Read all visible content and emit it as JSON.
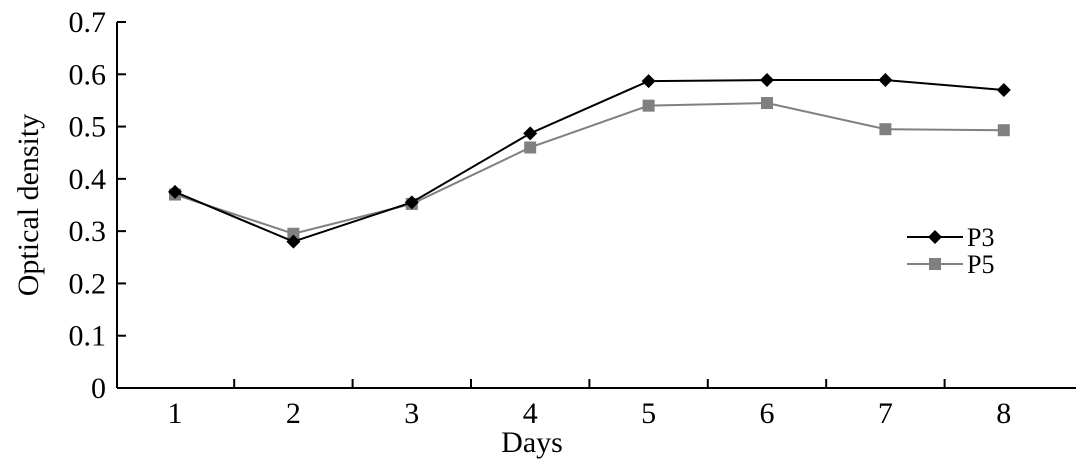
{
  "chart_data": {
    "type": "line",
    "xlabel": "Days",
    "ylabel": "Optical density",
    "categories": [
      "1",
      "2",
      "3",
      "4",
      "5",
      "6",
      "7",
      "8"
    ],
    "ylim": [
      0,
      0.7
    ],
    "yticks": [
      "0",
      "0.1",
      "0.2",
      "0.3",
      "0.4",
      "0.5",
      "0.6",
      "0.7"
    ],
    "grid": false,
    "legend_position": "right",
    "series": [
      {
        "name": "P3",
        "marker": "diamond",
        "color": "#000000",
        "values": [
          0.375,
          0.28,
          0.355,
          0.487,
          0.587,
          0.589,
          0.589,
          0.57
        ]
      },
      {
        "name": "P5",
        "marker": "square",
        "color": "#808080",
        "values": [
          0.37,
          0.295,
          0.352,
          0.46,
          0.54,
          0.545,
          0.495,
          0.493
        ]
      }
    ]
  }
}
